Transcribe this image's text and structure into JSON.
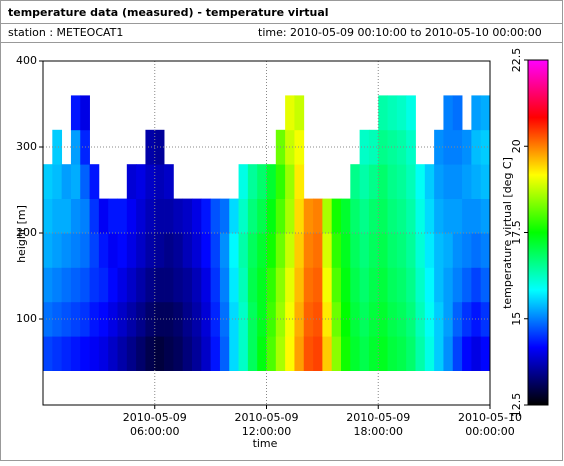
{
  "chart_data": {
    "type": "heatmap",
    "title": "temperature data (measured) - temperature virtual",
    "station": "station : METEOCAT1",
    "time_range": "time: 2010-05-09 00:10:00 to 2010-05-10 00:00:00",
    "xlabel": "time",
    "ylabel": "height [m]",
    "colorbar_label": "temperature virtual [deg C]",
    "xlim": [
      "2010-05-09 00:00:00",
      "2010-05-10 00:00:00"
    ],
    "xticks": [
      {
        "value": "2010-05-09 06:00:00",
        "label": [
          "2010-05-09",
          "06:00:00"
        ]
      },
      {
        "value": "2010-05-09 12:00:00",
        "label": [
          "2010-05-09",
          "12:00:00"
        ]
      },
      {
        "value": "2010-05-09 18:00:00",
        "label": [
          "2010-05-09",
          "18:00:00"
        ]
      },
      {
        "value": "2010-05-10 00:00:00",
        "label": [
          "2010-05-10",
          "00:00:00"
        ]
      }
    ],
    "ylim": [
      0,
      400
    ],
    "yticks": [
      100,
      200,
      300,
      400
    ],
    "clim": [
      12.5,
      22.5
    ],
    "cticks": [
      12.5,
      15,
      17.5,
      20,
      22.5
    ],
    "colormap": [
      "#000000",
      "#0000ff",
      "#00ffff",
      "#00ff00",
      "#ffff00",
      "#ff0000",
      "#ff00ff"
    ],
    "grid": true,
    "x": [
      "2010-05-09 00:15:00",
      "2010-05-09 00:45:00",
      "2010-05-09 01:15:00",
      "2010-05-09 01:45:00",
      "2010-05-09 02:15:00",
      "2010-05-09 02:45:00",
      "2010-05-09 03:15:00",
      "2010-05-09 03:45:00",
      "2010-05-09 04:15:00",
      "2010-05-09 04:45:00",
      "2010-05-09 05:15:00",
      "2010-05-09 05:45:00",
      "2010-05-09 06:15:00",
      "2010-05-09 06:45:00",
      "2010-05-09 07:15:00",
      "2010-05-09 07:45:00",
      "2010-05-09 08:15:00",
      "2010-05-09 08:45:00",
      "2010-05-09 09:15:00",
      "2010-05-09 09:45:00",
      "2010-05-09 10:15:00",
      "2010-05-09 10:45:00",
      "2010-05-09 11:15:00",
      "2010-05-09 11:45:00",
      "2010-05-09 12:15:00",
      "2010-05-09 12:45:00",
      "2010-05-09 13:15:00",
      "2010-05-09 13:45:00",
      "2010-05-09 14:15:00",
      "2010-05-09 14:45:00",
      "2010-05-09 15:15:00",
      "2010-05-09 15:45:00",
      "2010-05-09 16:15:00",
      "2010-05-09 16:45:00",
      "2010-05-09 17:15:00",
      "2010-05-09 17:45:00",
      "2010-05-09 18:15:00",
      "2010-05-09 18:45:00",
      "2010-05-09 19:15:00",
      "2010-05-09 19:45:00",
      "2010-05-09 20:15:00",
      "2010-05-09 20:45:00",
      "2010-05-09 21:15:00",
      "2010-05-09 21:45:00",
      "2010-05-09 22:15:00",
      "2010-05-09 22:45:00",
      "2010-05-09 23:15:00",
      "2010-05-09 23:45:00"
    ],
    "y": [
      60,
      100,
      140,
      180,
      220,
      260,
      300,
      340
    ],
    "values": [
      [
        14.6,
        14.9,
        15.1,
        15.3,
        15.4,
        15.5,
        null,
        null
      ],
      [
        14.5,
        14.8,
        15.0,
        15.2,
        15.3,
        15.4,
        15.5,
        null
      ],
      [
        14.4,
        14.7,
        14.9,
        15.1,
        15.3,
        15.2,
        null,
        null
      ],
      [
        14.3,
        14.6,
        14.8,
        15.0,
        15.1,
        15.3,
        15.2,
        14.3
      ],
      [
        14.2,
        14.5,
        14.7,
        14.9,
        15.0,
        14.8,
        14.4,
        14.0
      ],
      [
        14.1,
        14.3,
        14.5,
        14.6,
        14.5,
        14.3,
        null,
        null
      ],
      [
        14.0,
        14.2,
        14.4,
        14.3,
        14.1,
        null,
        null,
        null
      ],
      [
        13.8,
        14.0,
        14.2,
        14.1,
        14.3,
        null,
        null,
        null
      ],
      [
        13.6,
        13.8,
        14.0,
        14.2,
        14.3,
        null,
        null,
        null
      ],
      [
        13.4,
        13.6,
        13.8,
        14.0,
        14.1,
        13.9,
        null,
        null
      ],
      [
        13.2,
        13.4,
        13.6,
        13.8,
        13.9,
        14.0,
        null,
        null
      ],
      [
        13.0,
        13.2,
        13.4,
        13.6,
        13.7,
        13.8,
        13.6,
        null
      ],
      [
        12.9,
        13.1,
        13.3,
        13.5,
        13.6,
        13.7,
        13.5,
        null
      ],
      [
        13.0,
        13.1,
        13.3,
        13.4,
        13.6,
        13.8,
        null,
        null
      ],
      [
        13.1,
        13.2,
        13.4,
        13.5,
        13.7,
        null,
        null,
        null
      ],
      [
        13.3,
        13.4,
        13.5,
        13.7,
        13.8,
        null,
        null,
        null
      ],
      [
        13.5,
        13.6,
        13.7,
        13.9,
        14.0,
        null,
        null,
        null
      ],
      [
        13.8,
        13.9,
        14.0,
        14.2,
        14.3,
        null,
        null,
        null
      ],
      [
        14.3,
        14.4,
        14.5,
        14.6,
        14.7,
        null,
        null,
        null
      ],
      [
        14.8,
        14.9,
        15.0,
        15.1,
        14.9,
        null,
        null,
        null
      ],
      [
        15.6,
        15.6,
        15.7,
        15.8,
        15.6,
        null,
        null,
        null
      ],
      [
        16.2,
        16.2,
        16.3,
        16.4,
        16.2,
        16.0,
        null,
        null
      ],
      [
        16.9,
        16.9,
        17.0,
        16.9,
        16.7,
        16.5,
        null,
        null
      ],
      [
        17.4,
        17.3,
        17.3,
        17.2,
        17.0,
        16.8,
        null,
        null
      ],
      [
        18.0,
        17.9,
        17.8,
        17.6,
        17.4,
        17.2,
        null,
        null
      ],
      [
        18.6,
        18.5,
        18.4,
        18.2,
        18.0,
        17.8,
        18.2,
        null
      ],
      [
        19.2,
        19.1,
        19.0,
        18.8,
        18.6,
        18.5,
        18.8,
        19.0
      ],
      [
        19.8,
        19.7,
        19.6,
        19.5,
        19.4,
        19.3,
        19.1,
        18.8
      ],
      [
        20.3,
        20.2,
        20.1,
        20.0,
        19.9,
        null,
        null,
        null
      ],
      [
        20.4,
        20.3,
        20.2,
        20.1,
        20.0,
        null,
        null,
        null
      ],
      [
        19.5,
        19.3,
        19.1,
        18.9,
        18.6,
        null,
        null,
        null
      ],
      [
        18.4,
        18.2,
        18.0,
        17.8,
        17.6,
        null,
        null,
        null
      ],
      [
        17.6,
        17.5,
        17.4,
        17.3,
        17.2,
        null,
        null,
        null
      ],
      [
        17.2,
        17.1,
        17.0,
        16.9,
        16.8,
        16.6,
        null,
        null
      ],
      [
        17.0,
        16.9,
        16.8,
        16.7,
        16.6,
        16.4,
        16.2,
        null
      ],
      [
        17.2,
        17.1,
        17.0,
        16.9,
        16.8,
        16.6,
        16.3,
        null
      ],
      [
        17.3,
        17.2,
        17.1,
        17.0,
        16.9,
        16.8,
        16.6,
        16.4
      ],
      [
        17.1,
        17.0,
        16.9,
        16.8,
        16.7,
        16.6,
        16.5,
        16.3
      ],
      [
        17.0,
        16.9,
        16.8,
        16.7,
        16.6,
        16.5,
        16.4,
        16.2
      ],
      [
        16.8,
        16.7,
        16.6,
        16.5,
        16.4,
        16.3,
        16.2,
        16.0
      ],
      [
        16.4,
        16.3,
        16.2,
        16.1,
        16.0,
        15.9,
        null,
        null
      ],
      [
        16.0,
        15.9,
        15.8,
        15.7,
        15.6,
        15.5,
        null,
        null
      ],
      [
        15.5,
        15.5,
        15.4,
        15.4,
        15.3,
        15.2,
        15.1,
        null
      ],
      [
        15.1,
        15.2,
        15.2,
        15.3,
        15.2,
        15.1,
        15.0,
        15.0
      ],
      [
        14.6,
        14.8,
        15.0,
        15.1,
        15.2,
        15.1,
        15.0,
        14.9
      ],
      [
        14.2,
        14.5,
        14.8,
        15.0,
        15.1,
        15.2,
        15.1,
        null
      ],
      [
        14.0,
        14.3,
        14.6,
        14.9,
        15.1,
        15.3,
        15.4,
        15.2
      ],
      [
        14.2,
        14.5,
        14.8,
        15.0,
        15.2,
        15.4,
        15.5,
        15.3
      ]
    ]
  }
}
